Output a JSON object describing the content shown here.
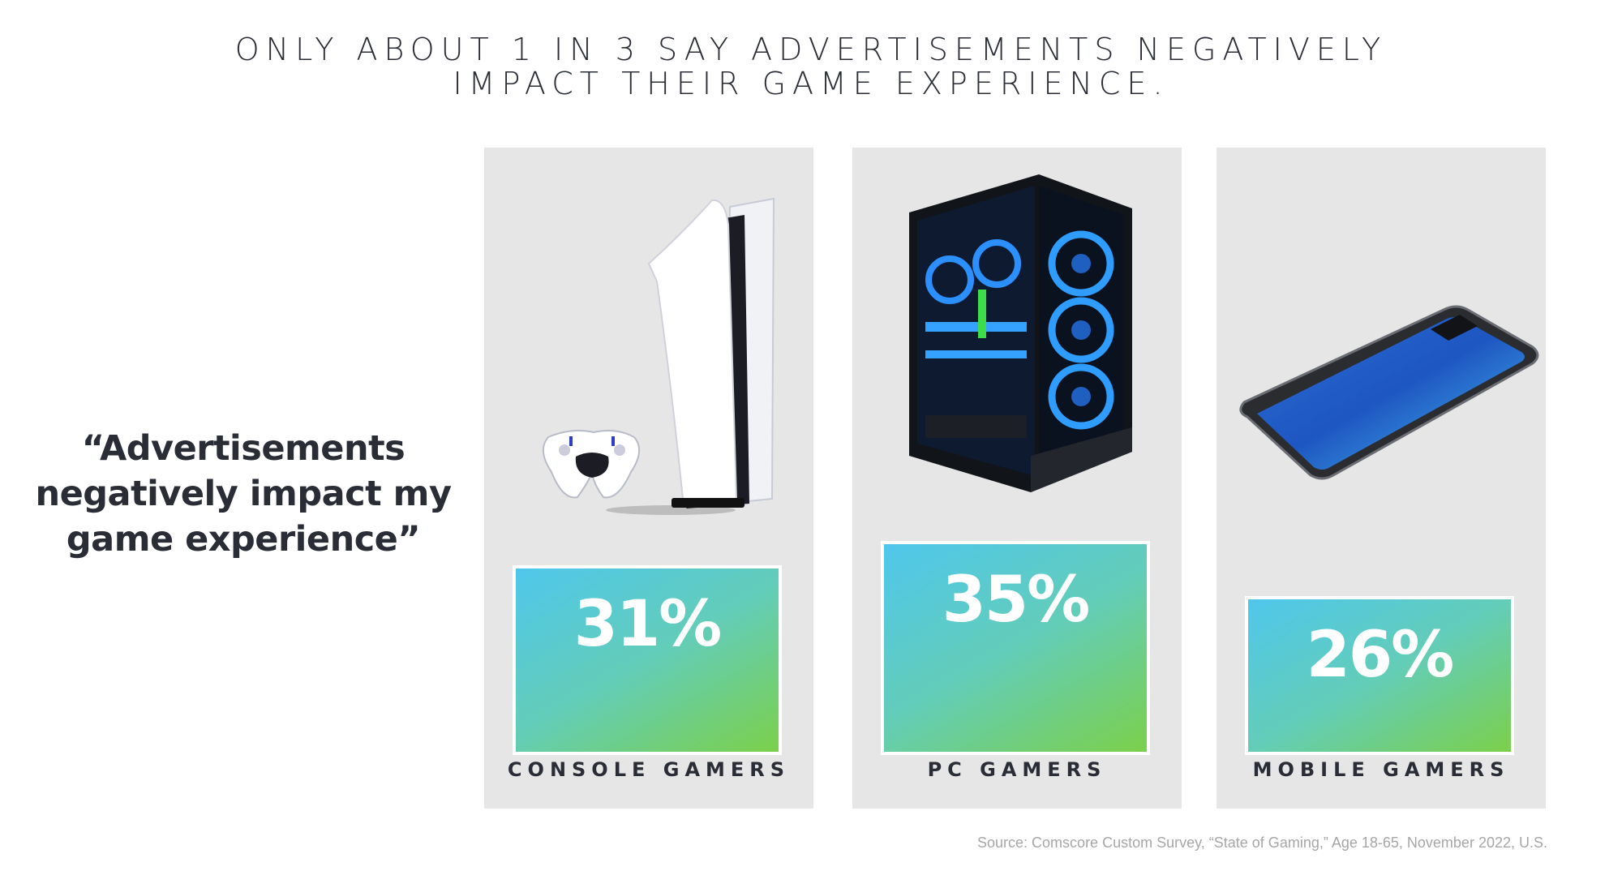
{
  "title_lines": [
    "ONLY ABOUT 1 IN 3 SAY ADVERTISEMENTS NEGATIVELY",
    "IMPACT THEIR GAME EXPERIENCE."
  ],
  "quote_lines": [
    "“Advertisements",
    "negatively impact my",
    "game experience”"
  ],
  "source": "Source: Comscore Custom Survey, “State of Gaming,” Age 18-65, November 2022, U.S.",
  "colors": {
    "gradient_start": "#4fc7ec",
    "gradient_end": "#7bd04a",
    "panel": "#e6e6e6",
    "text": "#2a2d36"
  },
  "chart_data": {
    "type": "bar",
    "categories": [
      "CONSOLE GAMERS",
      "PC GAMERS",
      "MOBILE GAMERS"
    ],
    "values": [
      31,
      35,
      26
    ],
    "value_labels": [
      "31%",
      "35%",
      "26%"
    ],
    "unit": "%",
    "icons": [
      "game-console-icon",
      "gaming-pc-icon",
      "smartphone-icon"
    ]
  }
}
